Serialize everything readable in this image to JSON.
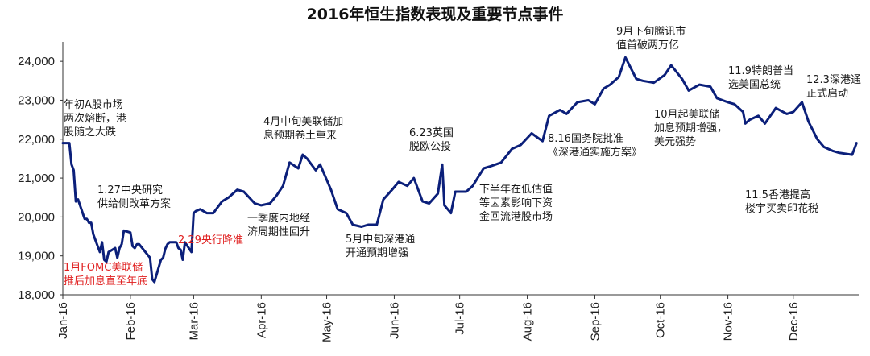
{
  "chart_data": {
    "type": "line",
    "title": "2016年恒生指数表现及重要节点事件",
    "colors": {
      "series": "#0b1f7a",
      "red_annotation": "#e02020",
      "text": "#1a1a1a"
    },
    "ylim": [
      18000,
      24500
    ],
    "yticks": [
      18000,
      19000,
      20000,
      21000,
      22000,
      23000,
      24000
    ],
    "ytick_labels": [
      "18,000",
      "19,000",
      "20,000",
      "21,000",
      "22,000",
      "23,000",
      "24,000"
    ],
    "xlim": [
      "2016-01-01",
      "2016-12-31"
    ],
    "xticks": [
      "2016-01-01",
      "2016-02-01",
      "2016-03-01",
      "2016-04-01",
      "2016-05-01",
      "2016-06-01",
      "2016-07-01",
      "2016-08-01",
      "2016-09-01",
      "2016-10-01",
      "2016-11-01",
      "2016-12-01"
    ],
    "xtick_labels": [
      "Jan-16",
      "Feb-16",
      "Mar-16",
      "Apr-16",
      "May-16",
      "Jun-16",
      "Jul-16",
      "Aug-16",
      "Sep-16",
      "Oct-16",
      "Nov-16",
      "Dec-16"
    ],
    "grid": false,
    "series": [
      {
        "x": [
          "2016-01-01",
          "2016-01-04",
          "2016-01-05",
          "2016-01-06",
          "2016-01-07",
          "2016-01-08",
          "2016-01-11",
          "2016-01-12",
          "2016-01-13",
          "2016-01-14",
          "2016-01-15",
          "2016-01-18",
          "2016-01-19",
          "2016-01-20",
          "2016-01-21",
          "2016-01-22",
          "2016-01-25",
          "2016-01-26",
          "2016-01-27",
          "2016-01-28",
          "2016-01-29",
          "2016-02-01",
          "2016-02-02",
          "2016-02-03",
          "2016-02-04",
          "2016-02-05",
          "2016-02-10",
          "2016-02-11",
          "2016-02-12",
          "2016-02-15",
          "2016-02-16",
          "2016-02-17",
          "2016-02-18",
          "2016-02-19",
          "2016-02-22",
          "2016-02-23",
          "2016-02-24",
          "2016-02-25",
          "2016-02-26",
          "2016-02-29",
          "2016-03-01",
          "2016-03-02",
          "2016-03-04",
          "2016-03-07",
          "2016-03-10",
          "2016-03-14",
          "2016-03-17",
          "2016-03-21",
          "2016-03-24",
          "2016-03-29",
          "2016-04-01",
          "2016-04-05",
          "2016-04-08",
          "2016-04-11",
          "2016-04-14",
          "2016-04-18",
          "2016-04-20",
          "2016-04-22",
          "2016-04-26",
          "2016-04-28",
          "2016-05-03",
          "2016-05-06",
          "2016-05-10",
          "2016-05-13",
          "2016-05-17",
          "2016-05-20",
          "2016-05-24",
          "2016-05-27",
          "2016-05-31",
          "2016-06-03",
          "2016-06-07",
          "2016-06-10",
          "2016-06-14",
          "2016-06-17",
          "2016-06-21",
          "2016-06-23",
          "2016-06-24",
          "2016-06-27",
          "2016-06-29",
          "2016-07-04",
          "2016-07-07",
          "2016-07-12",
          "2016-07-15",
          "2016-07-20",
          "2016-07-25",
          "2016-07-29",
          "2016-08-03",
          "2016-08-08",
          "2016-08-11",
          "2016-08-16",
          "2016-08-19",
          "2016-08-24",
          "2016-08-29",
          "2016-09-01",
          "2016-09-05",
          "2016-09-08",
          "2016-09-12",
          "2016-09-15",
          "2016-09-20",
          "2016-09-23",
          "2016-09-28",
          "2016-10-03",
          "2016-10-06",
          "2016-10-11",
          "2016-10-14",
          "2016-10-19",
          "2016-10-24",
          "2016-10-27",
          "2016-11-01",
          "2016-11-04",
          "2016-11-08",
          "2016-11-09",
          "2016-11-11",
          "2016-11-15",
          "2016-11-18",
          "2016-11-23",
          "2016-11-28",
          "2016-12-01",
          "2016-12-05",
          "2016-12-08",
          "2016-12-12",
          "2016-12-15",
          "2016-12-19",
          "2016-12-22",
          "2016-12-28",
          "2016-12-30"
        ],
        "values": [
          21900,
          21900,
          21350,
          21200,
          20400,
          20450,
          19950,
          19950,
          19850,
          19850,
          19550,
          19100,
          19350,
          18900,
          18850,
          19100,
          19200,
          18950,
          19200,
          19300,
          19650,
          19600,
          19250,
          19200,
          19300,
          19300,
          18950,
          18400,
          18330,
          18900,
          18950,
          19180,
          19300,
          19350,
          19350,
          19200,
          19160,
          18900,
          19350,
          19100,
          20100,
          20150,
          20200,
          20100,
          20100,
          20400,
          20500,
          20700,
          20650,
          20350,
          20300,
          20350,
          20550,
          20800,
          21400,
          21250,
          21600,
          21500,
          21200,
          21350,
          20700,
          20200,
          20100,
          19800,
          19750,
          19800,
          19800,
          20450,
          20700,
          20900,
          20800,
          21000,
          20400,
          20350,
          20600,
          21350,
          20300,
          20100,
          20650,
          20650,
          20800,
          21250,
          21300,
          21400,
          21750,
          21850,
          22150,
          21950,
          22600,
          22750,
          22650,
          22950,
          23000,
          22900,
          23300,
          23400,
          23600,
          24100,
          23550,
          23500,
          23450,
          23650,
          23900,
          23550,
          23250,
          23400,
          23350,
          23050,
          22950,
          22900,
          22700,
          22400,
          22500,
          22600,
          22400,
          22800,
          22650,
          22700,
          22950,
          22450,
          22000,
          21800,
          21700,
          21650,
          21600,
          21900
        ]
      }
    ],
    "annotations": [
      {
        "lines": [
          "年初A股市场",
          "两次熔断，港",
          "股随之大跌"
        ],
        "color": "black"
      },
      {
        "lines": [
          "1.27中央研究",
          "供给侧改革方案"
        ],
        "color": "black"
      },
      {
        "lines": [
          "1月FOMC美联储",
          "推后加息直至年底"
        ],
        "color": "red"
      },
      {
        "lines": [
          "2.29央行降准"
        ],
        "color": "red"
      },
      {
        "lines": [
          "4月中旬美联储加",
          "息预期卷土重来"
        ],
        "color": "black"
      },
      {
        "lines": [
          "一季度内地经",
          "济周期性回升"
        ],
        "color": "black"
      },
      {
        "lines": [
          "5月中旬深港通",
          "开通预期增强"
        ],
        "color": "black"
      },
      {
        "lines": [
          "6.23英国",
          "脱欧公投"
        ],
        "color": "black"
      },
      {
        "lines": [
          "下半年在低估值",
          "等因素影响下资",
          "金回流港股市场"
        ],
        "color": "black"
      },
      {
        "lines": [
          "8.16国务院批准",
          "《深港通实施方案》"
        ],
        "color": "black"
      },
      {
        "lines": [
          "9月下旬腾讯市",
          "值首破两万亿"
        ],
        "color": "black"
      },
      {
        "lines": [
          "10月起美联储",
          "加息预期增强，",
          "美元强势"
        ],
        "color": "black"
      },
      {
        "lines": [
          "11.9特朗普当",
          "选美国总统"
        ],
        "color": "black"
      },
      {
        "lines": [
          "11.5香港提高",
          "楼宇买卖印花税"
        ],
        "color": "black"
      },
      {
        "lines": [
          "12.3深港通",
          "正式启动"
        ],
        "color": "black"
      }
    ]
  }
}
